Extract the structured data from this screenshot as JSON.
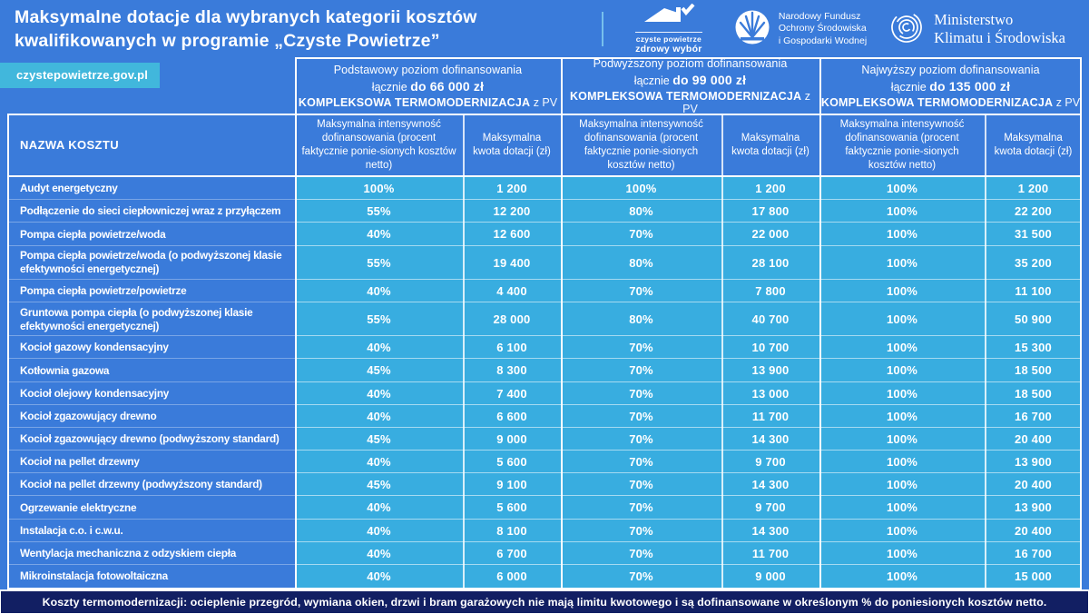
{
  "page": {
    "background_blue": "#3A7BDA",
    "cell_cyan": "#38ADE0",
    "badge_cyan": "#41B7DC",
    "footer_navy": "#121F63",
    "text_color": "#FFFFFF"
  },
  "header": {
    "title_line1": "Maksymalne dotacje dla wybranych kategorii kosztów",
    "title_line2": "kwalifikowanych w programie „Czyste Powietrze”",
    "site_badge": "czystepowietrze.gov.pl",
    "logos": {
      "czyste_powietrze": {
        "line1": "czyste powietrze",
        "line2": "zdrowy wybór"
      },
      "nfosigw": {
        "line1": "Narodowy Fundusz",
        "line2": "Ochrony Środowiska",
        "line3": "i Gospodarki Wodnej"
      },
      "ministry": {
        "line1": "Ministerstwo",
        "line2": "Klimatu i Środowiska"
      }
    }
  },
  "table": {
    "name_header": "NAZWA KOSZTU",
    "groups": [
      {
        "title": "Podstawowy poziom dofinansowania",
        "prefix": "łącznie",
        "amount": "do 66 000 zł",
        "bold": "KOMPLEKSOWA TERMOMODERNIZACJA",
        "suffix": "z PV"
      },
      {
        "title": "Podwyższony poziom dofinansowania",
        "prefix": "łącznie",
        "amount": "do 99 000 zł",
        "bold": "KOMPLEKSOWA TERMOMODERNIZACJA",
        "suffix": "z PV"
      },
      {
        "title": "Najwyższy poziom dofinansowania",
        "prefix": "łącznie",
        "amount": "do 135 000 zł",
        "bold": "KOMPLEKSOWA TERMOMODERNIZACJA",
        "suffix": "z PV"
      }
    ],
    "sub": {
      "intensity": "Maksymalna intensywność dofinansowania (procent faktycznie ponie-sionych kosztów netto)",
      "amount": "Maksymalna kwota dotacji (zł)"
    },
    "rows": [
      {
        "name": "Audyt energetyczny",
        "values": [
          "100%",
          "1 200",
          "100%",
          "1 200",
          "100%",
          "1 200"
        ]
      },
      {
        "name": "Podłączenie do sieci ciepłowniczej wraz z przyłączem",
        "values": [
          "55%",
          "12 200",
          "80%",
          "17 800",
          "100%",
          "22 200"
        ]
      },
      {
        "name": "Pompa ciepła powietrze/woda",
        "values": [
          "40%",
          "12 600",
          "70%",
          "22 000",
          "100%",
          "31 500"
        ]
      },
      {
        "name": "Pompa ciepła powietrze/woda (o podwyższonej klasie efektywności energetycznej)",
        "tall": true,
        "values": [
          "55%",
          "19 400",
          "80%",
          "28 100",
          "100%",
          "35 200"
        ]
      },
      {
        "name": "Pompa ciepła powietrze/powietrze",
        "values": [
          "40%",
          "4 400",
          "70%",
          "7 800",
          "100%",
          "11 100"
        ]
      },
      {
        "name": "Gruntowa pompa ciepła (o podwyższonej klasie efektywności energetycznej)",
        "tall": true,
        "values": [
          "55%",
          "28 000",
          "80%",
          "40 700",
          "100%",
          "50 900"
        ]
      },
      {
        "name": "Kocioł gazowy kondensacyjny",
        "values": [
          "40%",
          "6 100",
          "70%",
          "10 700",
          "100%",
          "15 300"
        ]
      },
      {
        "name": "Kotłownia gazowa",
        "values": [
          "45%",
          "8 300",
          "70%",
          "13 900",
          "100%",
          "18 500"
        ]
      },
      {
        "name": "Kocioł olejowy kondensacyjny",
        "values": [
          "40%",
          "7 400",
          "70%",
          "13 000",
          "100%",
          "18 500"
        ]
      },
      {
        "name": "Kocioł zgazowujący drewno",
        "values": [
          "40%",
          "6 600",
          "70%",
          "11 700",
          "100%",
          "16 700"
        ]
      },
      {
        "name": "Kocioł zgazowujący drewno (podwyższony standard)",
        "values": [
          "45%",
          "9 000",
          "70%",
          "14 300",
          "100%",
          "20 400"
        ]
      },
      {
        "name": "Kocioł na pellet drzewny",
        "values": [
          "40%",
          "5 600",
          "70%",
          "9 700",
          "100%",
          "13 900"
        ]
      },
      {
        "name": "Kocioł na pellet drzewny (podwyższony standard)",
        "values": [
          "45%",
          "9 100",
          "70%",
          "14 300",
          "100%",
          "20 400"
        ]
      },
      {
        "name": "Ogrzewanie elektryczne",
        "values": [
          "40%",
          "5 600",
          "70%",
          "9 700",
          "100%",
          "13 900"
        ]
      },
      {
        "name": "Instalacja c.o. i c.w.u.",
        "values": [
          "40%",
          "8 100",
          "70%",
          "14 300",
          "100%",
          "20 400"
        ]
      },
      {
        "name": "Wentylacja mechaniczna z odzyskiem ciepła",
        "values": [
          "40%",
          "6 700",
          "70%",
          "11 700",
          "100%",
          "16 700"
        ]
      },
      {
        "name": "Mikroinstalacja fotowoltaiczna",
        "values": [
          "40%",
          "6 000",
          "70%",
          "9 000",
          "100%",
          "15 000"
        ]
      }
    ]
  },
  "footer": {
    "text": "Koszty  termomodernizacji: ocieplenie przegród, wymiana okien, drzwi i bram garażowych nie mają limitu kwotowego i są dofinansowane w określonym % do poniesionych kosztów netto."
  }
}
